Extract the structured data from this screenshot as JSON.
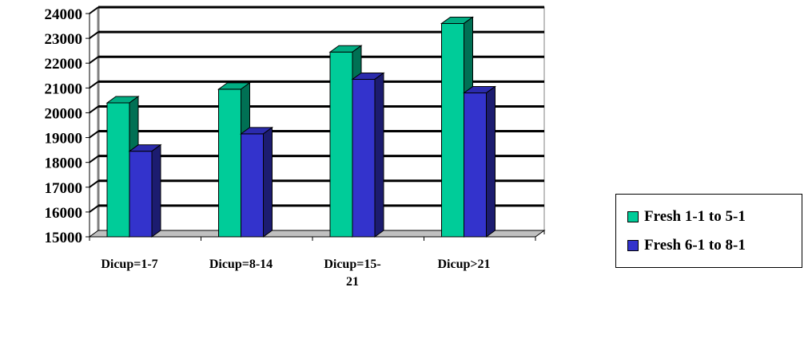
{
  "chart_data": {
    "type": "bar",
    "categories": [
      [
        "Dicup=1-7"
      ],
      [
        "Dicup=8-14"
      ],
      [
        "Dicup=15-",
        "21"
      ],
      [
        "Dicup>21"
      ]
    ],
    "series": [
      {
        "name": "Fresh 1-1 to 5-1",
        "color": "#00cc99",
        "values": [
          20400,
          20950,
          22450,
          23600
        ]
      },
      {
        "name": "Fresh 6-1 to 8-1",
        "color": "#3333cc",
        "values": [
          18450,
          19150,
          21350,
          20800
        ]
      }
    ],
    "ylim": [
      15000,
      24000
    ],
    "yticks": [
      "15000",
      "16000",
      "17000",
      "18000",
      "19000",
      "20000",
      "21000",
      "22000",
      "23000",
      "24000"
    ],
    "grid": true,
    "legend_position": "right",
    "title": "",
    "xlabel": "",
    "ylabel": ""
  }
}
